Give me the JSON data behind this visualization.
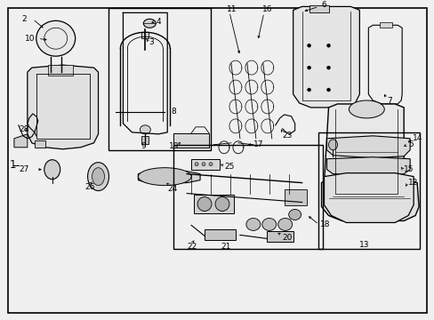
{
  "bg_color": "#f0f0f0",
  "border_color": "#000000",
  "line_color": "#000000",
  "fig_width": 4.89,
  "fig_height": 3.6,
  "dpi": 100,
  "fs": 6.5,
  "fs_main": 8.0
}
